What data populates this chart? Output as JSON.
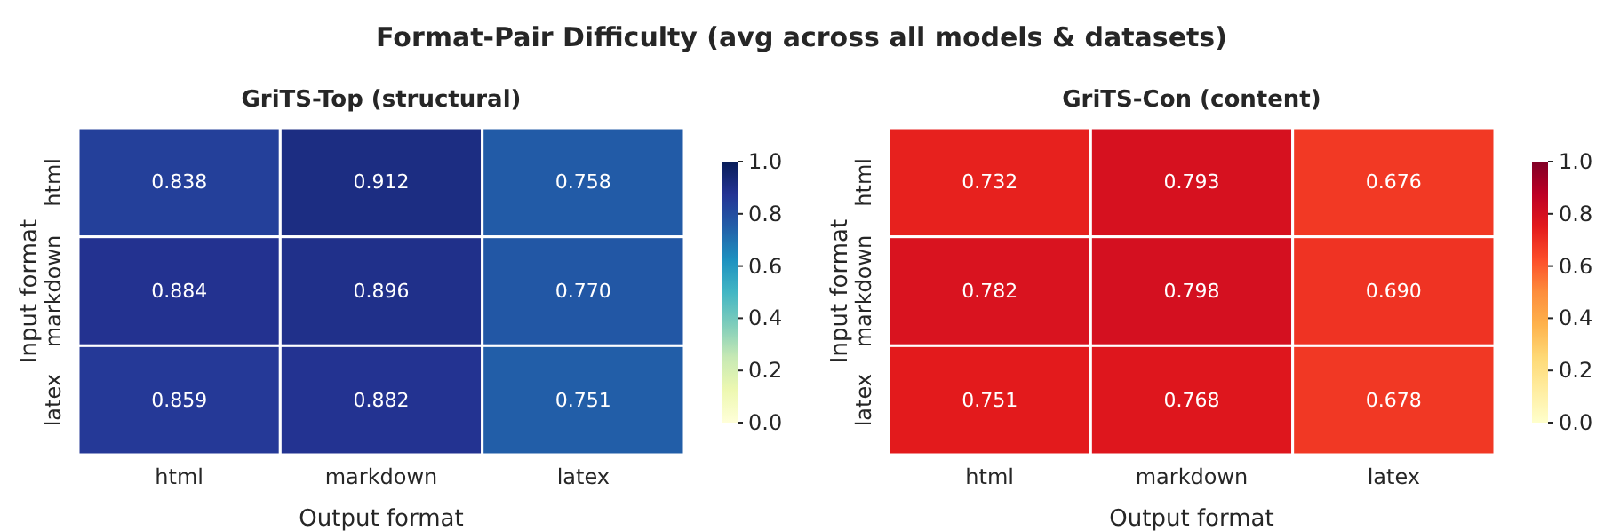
{
  "chart_data": [
    {
      "type": "heatmap",
      "title": "GriTS-Top (structural)",
      "annotations": [
        "Format-Pair Difficulty  (avg across all models & datasets)"
      ],
      "xlabel": "Output format",
      "ylabel": "Input format",
      "categories": [
        "html",
        "markdown",
        "latex"
      ],
      "y_categories": [
        "html",
        "markdown",
        "latex"
      ],
      "cells": [
        [
          0.838,
          0.912,
          0.758
        ],
        [
          0.884,
          0.896,
          0.77
        ],
        [
          0.859,
          0.882,
          0.751
        ]
      ],
      "cell_labels": [
        [
          "0.838",
          "0.912",
          "0.758"
        ],
        [
          "0.884",
          "0.896",
          "0.770"
        ],
        [
          "0.859",
          "0.882",
          "0.751"
        ]
      ],
      "clim": [
        0,
        1
      ],
      "cticks": [
        {
          "value": 0,
          "label": "0.0"
        },
        {
          "value": 0.2,
          "label": "0.2"
        },
        {
          "value": 0.4,
          "label": "0.4"
        },
        {
          "value": 0.6,
          "label": "0.6"
        },
        {
          "value": 0.8,
          "label": "0.8"
        },
        {
          "value": 1,
          "label": "1.0"
        }
      ],
      "data_labels": true
    },
    {
      "type": "heatmap",
      "title": "GriTS-Con (content)",
      "xlabel": "Output format",
      "ylabel": "Input format",
      "categories": [
        "html",
        "markdown",
        "latex"
      ],
      "y_categories": [
        "html",
        "markdown",
        "latex"
      ],
      "cells": [
        [
          0.732,
          0.793,
          0.676
        ],
        [
          0.782,
          0.798,
          0.69
        ],
        [
          0.751,
          0.768,
          0.678
        ]
      ],
      "cell_labels": [
        [
          "0.732",
          "0.793",
          "0.676"
        ],
        [
          "0.782",
          "0.798",
          "0.690"
        ],
        [
          "0.751",
          "0.768",
          "0.678"
        ]
      ],
      "clim": [
        0,
        1
      ],
      "cticks": [
        {
          "value": 0,
          "label": "0.0"
        },
        {
          "value": 0.2,
          "label": "0.2"
        },
        {
          "value": 0.4,
          "label": "0.4"
        },
        {
          "value": 0.6,
          "label": "0.6"
        },
        {
          "value": 0.8,
          "label": "0.8"
        },
        {
          "value": 1,
          "label": "1.0"
        }
      ],
      "data_labels": true
    }
  ]
}
